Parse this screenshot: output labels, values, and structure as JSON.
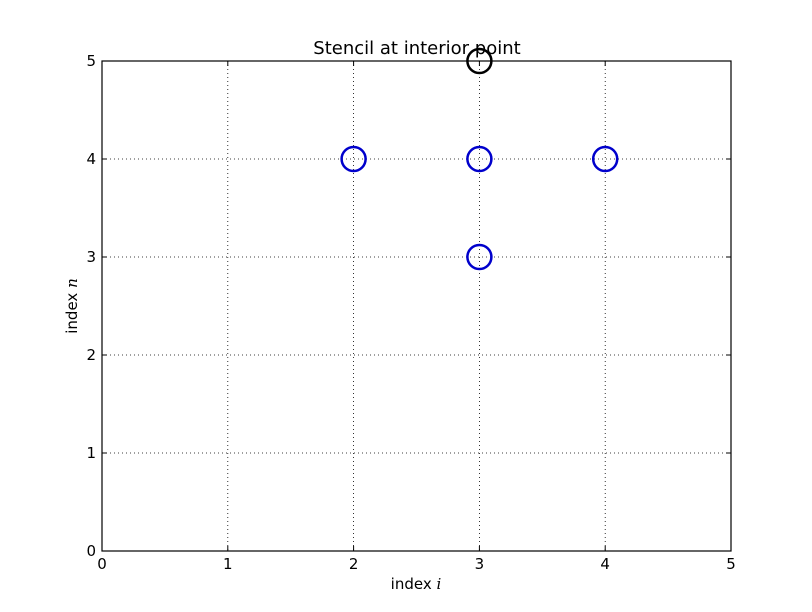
{
  "chart_data": {
    "type": "scatter",
    "title": "Stencil at interior point",
    "xlabel": {
      "prefix": "index",
      "var": "i"
    },
    "ylabel": {
      "prefix": "index",
      "var": "n"
    },
    "xlim": [
      0,
      5
    ],
    "ylim": [
      0,
      5
    ],
    "xticks": [
      0,
      1,
      2,
      3,
      4,
      5
    ],
    "yticks": [
      0,
      1,
      2,
      3,
      4,
      5
    ],
    "grid": true,
    "series": [
      {
        "marker": "open-circle",
        "color": "#0000cc",
        "points": [
          {
            "x": 2,
            "y": 4
          },
          {
            "x": 3,
            "y": 4
          },
          {
            "x": 4,
            "y": 4
          },
          {
            "x": 3,
            "y": 3
          }
        ]
      },
      {
        "marker": "open-circle",
        "color": "#000000",
        "points": [
          {
            "x": 3,
            "y": 5
          }
        ]
      }
    ]
  }
}
